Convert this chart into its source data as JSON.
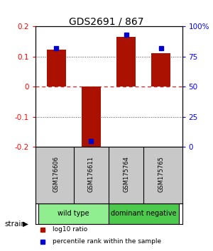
{
  "title": "GDS2691 / 867",
  "samples": [
    "GSM176606",
    "GSM176611",
    "GSM175764",
    "GSM175765"
  ],
  "log10_ratio": [
    0.122,
    -0.215,
    0.165,
    0.11
  ],
  "percentile_rank": [
    82,
    5,
    93,
    82
  ],
  "groups": [
    {
      "label": "wild type",
      "indices": [
        0,
        1
      ],
      "color": "#90EE90"
    },
    {
      "label": "dominant negative",
      "indices": [
        2,
        3
      ],
      "color": "#4DC94D"
    }
  ],
  "group_row_label": "strain",
  "ylim_left": [
    -0.2,
    0.2
  ],
  "ylim_right": [
    0,
    100
  ],
  "yticks_left": [
    -0.2,
    -0.1,
    0.0,
    0.1,
    0.2
  ],
  "yticks_right": [
    0,
    25,
    50,
    75,
    100
  ],
  "bar_color": "#AA1100",
  "square_color": "#0000CC",
  "hline_zero_color": "#DD2222",
  "hline_dotted_color": "#444444",
  "background_color": "#FFFFFF",
  "bar_width": 0.55,
  "sample_label_bg": "#C8C8C8",
  "legend_items": [
    {
      "label": "log10 ratio",
      "color": "#AA1100"
    },
    {
      "label": "percentile rank within the sample",
      "color": "#0000CC"
    }
  ]
}
